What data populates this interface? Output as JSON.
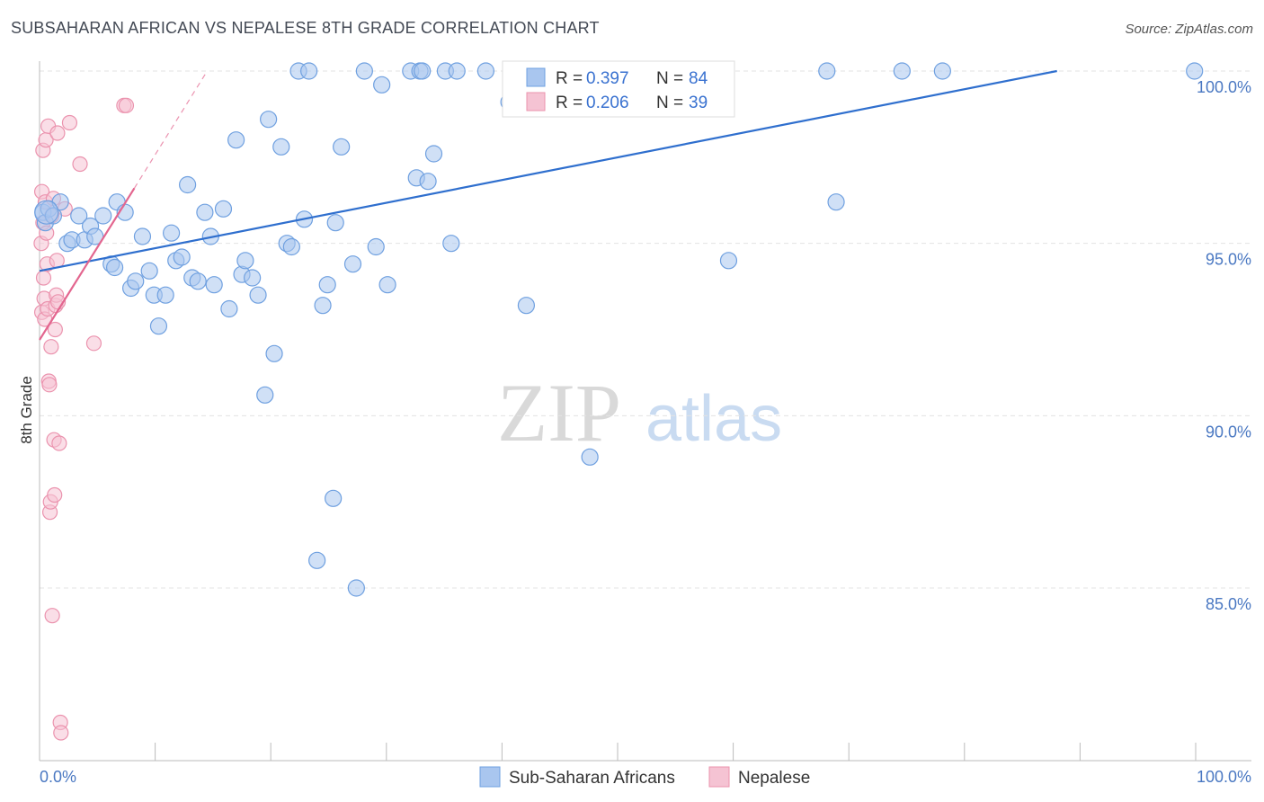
{
  "title": "SUBSAHARAN AFRICAN VS NEPALESE 8TH GRADE CORRELATION CHART",
  "source": "Source: ZipAtlas.com",
  "watermark": {
    "zip": "ZIP",
    "atlas": "atlas"
  },
  "chart_data": {
    "type": "scatter",
    "xlabel": "",
    "ylabel": "8th Grade",
    "xlim": [
      0,
      100
    ],
    "ylim": [
      80.2,
      100.5
    ],
    "x_tick_labels": [
      "0.0%",
      "100.0%"
    ],
    "y_ticks": [
      85,
      90,
      95,
      100
    ],
    "y_tick_labels": [
      "85.0%",
      "90.0%",
      "95.0%",
      "100.0%"
    ],
    "grid": true,
    "legend_position": "top-center",
    "stats": [
      {
        "r_label": "R =",
        "r": "0.397",
        "n_label": "N =",
        "n": "84"
      },
      {
        "r_label": "R =",
        "r": "0.206",
        "n_label": "N =",
        "n": "39"
      }
    ],
    "series": [
      {
        "name": "Sub-Saharan Africans",
        "color": "#6fa0e0",
        "fill": "#a9c6ef",
        "line_color": "#2f6fce",
        "trend": {
          "x0": 0,
          "y0": 94.2,
          "x1": 88,
          "y1": 100
        },
        "points": [
          [
            0.3,
            95.9
          ],
          [
            0.5,
            95.6
          ],
          [
            0.8,
            96.0
          ],
          [
            1.2,
            95.8
          ],
          [
            1.8,
            96.2
          ],
          [
            2.4,
            95.0
          ],
          [
            2.8,
            95.1
          ],
          [
            3.4,
            95.8
          ],
          [
            3.9,
            95.1
          ],
          [
            4.4,
            95.5
          ],
          [
            4.8,
            95.2
          ],
          [
            5.5,
            95.8
          ],
          [
            6.2,
            94.4
          ],
          [
            6.5,
            94.3
          ],
          [
            6.7,
            96.2
          ],
          [
            7.4,
            95.9
          ],
          [
            7.9,
            93.7
          ],
          [
            8.3,
            93.9
          ],
          [
            8.9,
            95.2
          ],
          [
            9.5,
            94.2
          ],
          [
            9.9,
            93.5
          ],
          [
            10.3,
            92.6
          ],
          [
            10.9,
            93.5
          ],
          [
            11.4,
            95.3
          ],
          [
            11.8,
            94.5
          ],
          [
            12.3,
            94.6
          ],
          [
            12.8,
            96.7
          ],
          [
            13.2,
            94.0
          ],
          [
            13.7,
            93.9
          ],
          [
            14.3,
            95.9
          ],
          [
            14.8,
            95.2
          ],
          [
            15.1,
            93.8
          ],
          [
            15.9,
            96.0
          ],
          [
            16.4,
            93.1
          ],
          [
            17.0,
            98.0
          ],
          [
            17.5,
            94.1
          ],
          [
            17.8,
            94.5
          ],
          [
            18.4,
            94.0
          ],
          [
            18.9,
            93.5
          ],
          [
            19.5,
            90.6
          ],
          [
            19.8,
            98.6
          ],
          [
            20.3,
            91.8
          ],
          [
            20.9,
            97.8
          ],
          [
            21.4,
            95.0
          ],
          [
            21.8,
            94.9
          ],
          [
            22.4,
            100.0
          ],
          [
            22.9,
            95.7
          ],
          [
            23.3,
            100.0
          ],
          [
            24.0,
            85.8
          ],
          [
            24.5,
            93.2
          ],
          [
            24.9,
            93.8
          ],
          [
            25.4,
            87.6
          ],
          [
            25.6,
            95.6
          ],
          [
            26.1,
            97.8
          ],
          [
            27.1,
            94.4
          ],
          [
            27.4,
            85.0
          ],
          [
            28.1,
            100.0
          ],
          [
            29.1,
            94.9
          ],
          [
            29.6,
            99.6
          ],
          [
            30.1,
            93.8
          ],
          [
            32.1,
            100.0
          ],
          [
            32.6,
            96.9
          ],
          [
            32.9,
            100.0
          ],
          [
            33.1,
            100.0
          ],
          [
            33.6,
            96.8
          ],
          [
            34.1,
            97.6
          ],
          [
            35.1,
            100.0
          ],
          [
            35.6,
            95.0
          ],
          [
            36.1,
            100.0
          ],
          [
            38.6,
            100.0
          ],
          [
            40.6,
            99.1
          ],
          [
            40.9,
            100.0
          ],
          [
            42.1,
            93.2
          ],
          [
            43.6,
            100.0
          ],
          [
            47.1,
            100.0
          ],
          [
            47.6,
            88.8
          ],
          [
            51.1,
            99.0
          ],
          [
            55.6,
            99.1
          ],
          [
            59.6,
            94.5
          ],
          [
            68.1,
            100.0
          ],
          [
            68.9,
            96.2
          ],
          [
            74.6,
            100.0
          ],
          [
            78.1,
            100.0
          ],
          [
            99.9,
            100.0
          ]
        ]
      },
      {
        "name": "Nepalese",
        "color": "#eb93ae",
        "fill": "#f5c3d3",
        "line_color": "#e3668f",
        "trend": {
          "x0": 0,
          "y0": 92.2,
          "x1": 8.2,
          "y1": 96.6
        },
        "trend_dashed": {
          "x0": 8.2,
          "y0": 96.6,
          "x1": 14.5,
          "y1": 100
        },
        "points": [
          [
            0.15,
            95.0
          ],
          [
            0.2,
            96.5
          ],
          [
            0.2,
            93.0
          ],
          [
            0.3,
            97.7
          ],
          [
            0.3,
            95.6
          ],
          [
            0.35,
            94.0
          ],
          [
            0.4,
            93.4
          ],
          [
            0.45,
            92.8
          ],
          [
            0.5,
            96.2
          ],
          [
            0.55,
            98.0
          ],
          [
            0.6,
            95.3
          ],
          [
            0.65,
            94.4
          ],
          [
            0.7,
            93.1
          ],
          [
            0.75,
            98.4
          ],
          [
            0.8,
            91.0
          ],
          [
            0.85,
            90.9
          ],
          [
            0.9,
            87.2
          ],
          [
            0.95,
            87.5
          ],
          [
            1.0,
            92.0
          ],
          [
            1.05,
            95.8
          ],
          [
            1.1,
            84.2
          ],
          [
            1.2,
            96.3
          ],
          [
            1.25,
            89.3
          ],
          [
            1.3,
            87.7
          ],
          [
            1.35,
            92.5
          ],
          [
            1.4,
            93.2
          ],
          [
            1.45,
            93.5
          ],
          [
            1.5,
            94.5
          ],
          [
            1.55,
            98.2
          ],
          [
            1.6,
            93.3
          ],
          [
            1.7,
            89.2
          ],
          [
            1.8,
            81.1
          ],
          [
            1.85,
            80.8
          ],
          [
            2.2,
            96.0
          ],
          [
            2.6,
            98.5
          ],
          [
            3.5,
            97.3
          ],
          [
            4.7,
            92.1
          ],
          [
            7.3,
            99.0
          ],
          [
            7.5,
            99.0
          ]
        ]
      }
    ]
  }
}
